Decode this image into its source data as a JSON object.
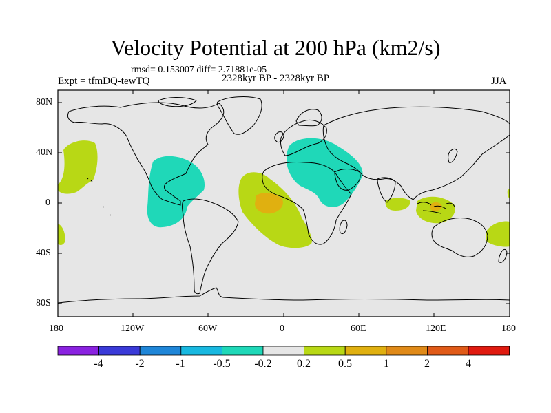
{
  "title": "Velocity Potential at 200 hPa (km2/s)",
  "stats_line": "rmsd= 0.153007 diff= 2.71881e-05",
  "experiment_label": "Expt = tfmDQ-tewTQ",
  "period_label": "2328kyr BP - 2328kyr BP",
  "season_label": "JJA",
  "lat_ticks": [
    "80N",
    "40N",
    "0",
    "40S",
    "80S"
  ],
  "lon_ticks": [
    "180",
    "120W",
    "60W",
    "0",
    "60E",
    "120E",
    "180"
  ],
  "colorbar": {
    "colors": [
      "#8a22e0",
      "#3a3ad8",
      "#1f86d8",
      "#18b8e0",
      "#1fd8b8",
      "#e6e6e6",
      "#b8d815",
      "#e0b010",
      "#e08a18",
      "#e05a18",
      "#e01a10"
    ],
    "labels": [
      "-4",
      "-2",
      "-1",
      "-0.5",
      "-0.2",
      "0.2",
      "0.5",
      "1",
      "2",
      "4"
    ]
  },
  "map_colors": {
    "background": "#e6e6e6",
    "negative": "#1fd8b8",
    "positive": "#b8d815",
    "strong_positive": "#e0b010",
    "coast": "#000000"
  }
}
